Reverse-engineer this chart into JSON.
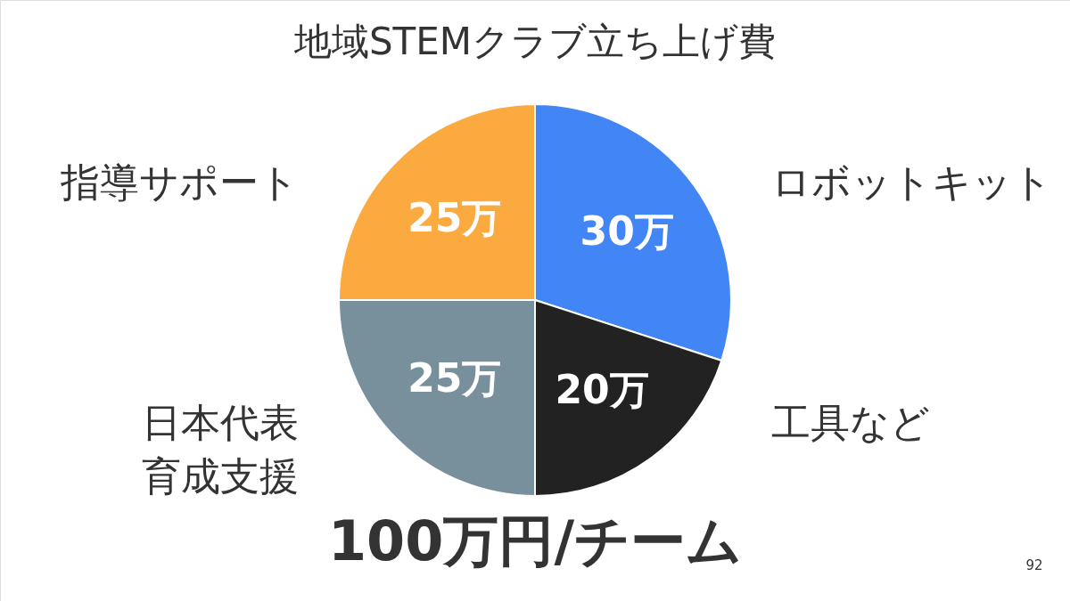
{
  "chart_data": {
    "type": "pie",
    "title": "地域STEMクラブ立ち上げ費",
    "categories": [
      "ロボットキット",
      "工具など",
      "日本代表育成支援",
      "指導サポート"
    ],
    "values": [
      30,
      20,
      25,
      25
    ],
    "value_labels": [
      "30万",
      "20万",
      "25万",
      "25万"
    ],
    "colors": [
      "#4285f4",
      "#222222",
      "#78909c",
      "#fbaa3f"
    ],
    "annotations": [
      "100万円/チーム",
      "92"
    ]
  }
}
